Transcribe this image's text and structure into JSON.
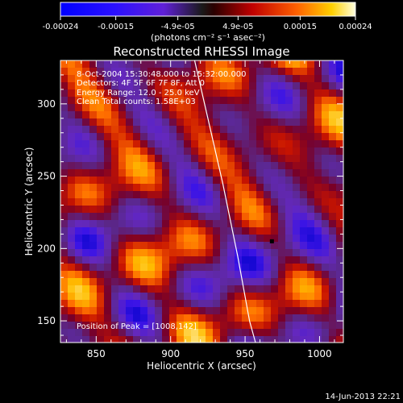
{
  "colorbar": {
    "tick_labels": [
      "-0.00024",
      "-0.00015",
      "-4.9e-05",
      "4.9e-05",
      "0.00015",
      "0.00024"
    ],
    "tick_values": [
      -0.00024,
      -0.00015,
      -4.9e-05,
      4.9e-05,
      0.00015,
      0.00024
    ],
    "range": [
      -0.00024,
      0.00024
    ],
    "units_label": "(photons cm⁻² s⁻¹ asec⁻²)"
  },
  "chart_data": {
    "type": "heatmap",
    "title": "Reconstructed RHESSI Image",
    "xlabel": "Heliocentric X (arcsec)",
    "ylabel": "Heliocentric Y (arcsec)",
    "xlim": [
      826,
      1016
    ],
    "ylim": [
      135,
      330
    ],
    "x_ticks": [
      850,
      900,
      950,
      1000
    ],
    "y_ticks": [
      150,
      200,
      250,
      300
    ],
    "x_tick_labels": [
      "850",
      "900",
      "950",
      "1000"
    ],
    "y_tick_labels": [
      "150",
      "200",
      "250",
      "300"
    ],
    "annotations": [
      "8-Oct-2004 15:30:48.000 to 15:32:00.000",
      "Detectors: 4F 5F 6F 7F 8F, Att 0",
      "Energy Range: 12.0 - 25.0 keV",
      "Clean     Total counts: 1.58E+03"
    ],
    "peak_text": "Position of Peak = [1008,142]",
    "limb_curve": [
      [
        915,
        335
      ],
      [
        925,
        290
      ],
      [
        935,
        245
      ],
      [
        945,
        195
      ],
      [
        953,
        150
      ],
      [
        957,
        135
      ]
    ],
    "marker": [
      968,
      205
    ]
  },
  "footer": {
    "timestamp": "14-Jun-2013 22:21"
  }
}
